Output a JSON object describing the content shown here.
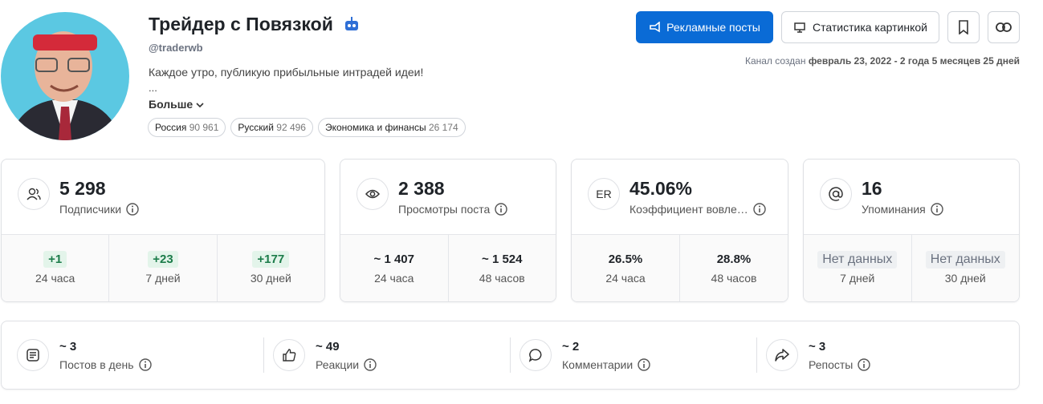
{
  "profile": {
    "title": "Трейдер с Повязкой",
    "handle": "@traderwb",
    "description": "Каждое утро, публикую прибыльные интрадей идеи!",
    "ellipsis": "...",
    "more": "Больше",
    "tags": [
      {
        "name": "Россия",
        "count": "90 961"
      },
      {
        "name": "Русский",
        "count": "92 496"
      },
      {
        "name": "Экономика и финансы",
        "count": "26 174"
      }
    ]
  },
  "actions": {
    "ads": "Рекламные посты",
    "stats": "Статистика картинкой"
  },
  "created": {
    "label": "Канал создан",
    "value": "февраль 23, 2022 - 2 года 5 месяцев 25 дней"
  },
  "cards": [
    {
      "value": "5 298",
      "label": "Подписчики",
      "periods": [
        {
          "value": "+1",
          "label": "24 часа"
        },
        {
          "value": "+23",
          "label": "7 дней"
        },
        {
          "value": "+177",
          "label": "30 дней"
        }
      ]
    },
    {
      "value": "2 388",
      "label": "Просмотры поста",
      "periods": [
        {
          "value": "~ 1 407",
          "label": "24 часа"
        },
        {
          "value": "~ 1 524",
          "label": "48 часов"
        }
      ]
    },
    {
      "badge": "ER",
      "value": "45.06%",
      "label": "Коэффициент вовле…",
      "periods": [
        {
          "value": "26.5%",
          "label": "24 часа"
        },
        {
          "value": "28.8%",
          "label": "48 часов"
        }
      ]
    },
    {
      "value": "16",
      "label": "Упоминания",
      "periods": [
        {
          "value": "Нет данных",
          "label": "7 дней"
        },
        {
          "value": "Нет данных",
          "label": "30 дней"
        }
      ]
    }
  ],
  "activity": [
    {
      "value": "~ 3",
      "label": "Постов в день"
    },
    {
      "value": "~ 49",
      "label": "Реакции"
    },
    {
      "value": "~ 2",
      "label": "Комментарии"
    },
    {
      "value": "~ 3",
      "label": "Репосты"
    }
  ]
}
